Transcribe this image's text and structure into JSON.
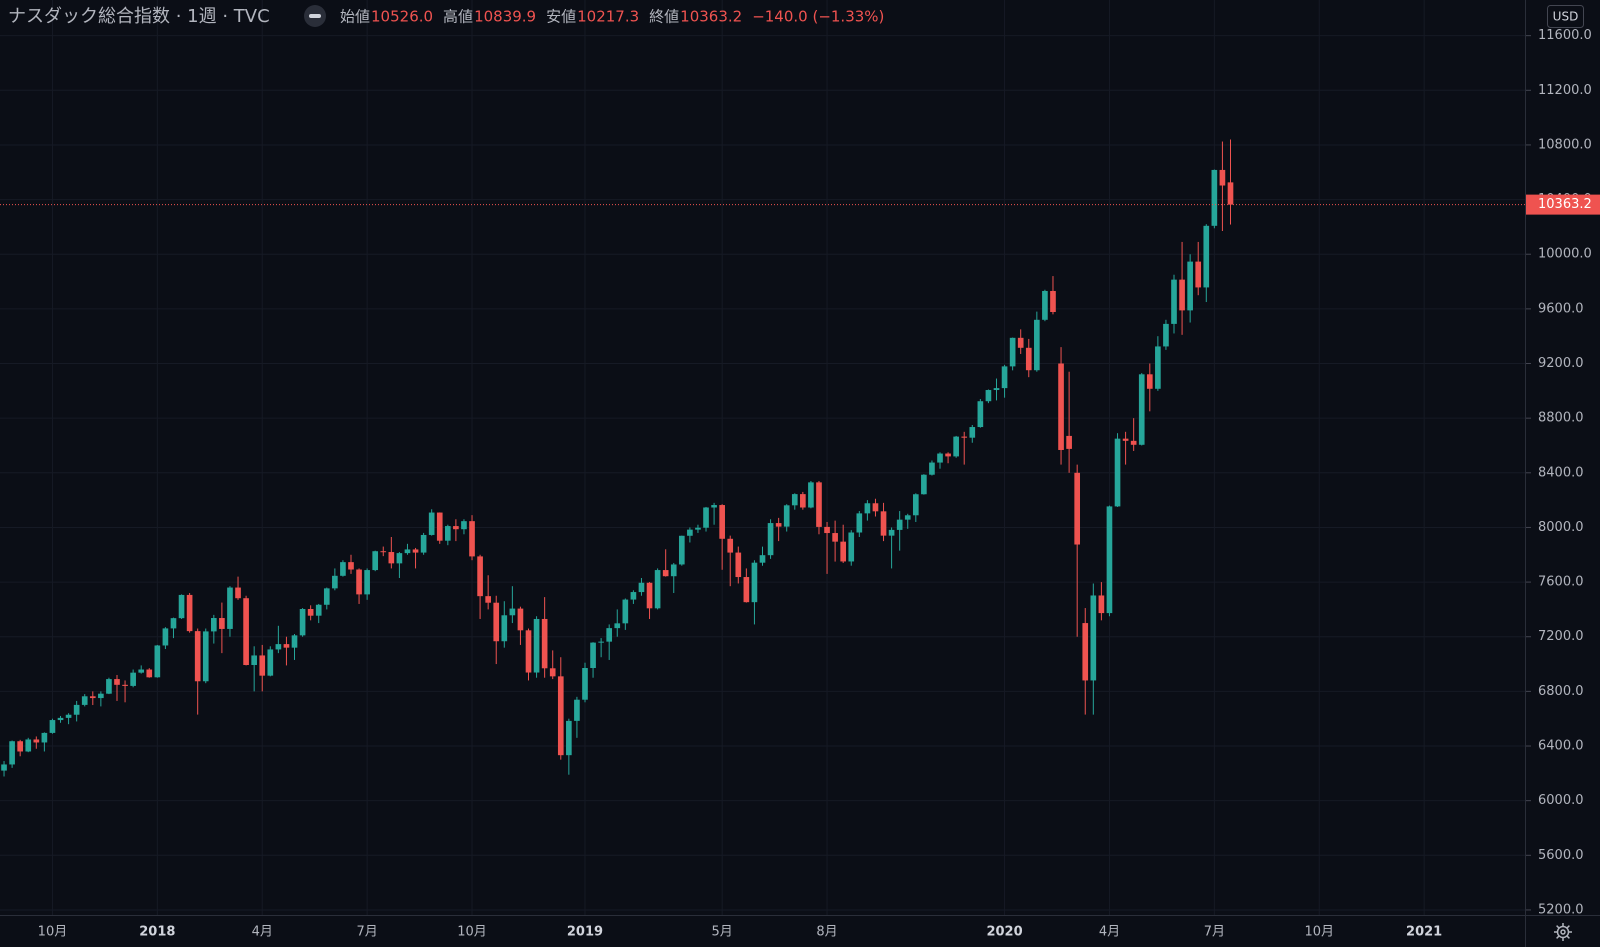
{
  "chart_data": {
    "type": "candlestick",
    "title": "ナスダック総合指数 · 1週 · TVC",
    "legend": [
      {
        "label": "始値",
        "value": "10526.0"
      },
      {
        "label": "高値",
        "value": "10839.9"
      },
      {
        "label": "安値",
        "value": "10217.3"
      },
      {
        "label": "終値",
        "value": "10363.2"
      }
    ],
    "change": "−140.0 (−1.33%)",
    "currency": "USD",
    "up_color": "#26a69a",
    "down_color": "#ef5350",
    "grid": true,
    "last_price_line": true,
    "ylim": [
      5163,
      11861
    ],
    "yticks": [
      {
        "value": 11600,
        "label": "11600.0"
      },
      {
        "value": 11200,
        "label": "11200.0"
      },
      {
        "value": 10800,
        "label": "10800.0"
      },
      {
        "value": 10400,
        "label": "10400.0"
      },
      {
        "value": 10000,
        "label": "10000.0"
      },
      {
        "value": 9600,
        "label": "9600.0"
      },
      {
        "value": 9200,
        "label": "9200.0"
      },
      {
        "value": 8800,
        "label": "8800.0"
      },
      {
        "value": 8400,
        "label": "8400.0"
      },
      {
        "value": 8000,
        "label": "8000.0"
      },
      {
        "value": 7600,
        "label": "7600.0"
      },
      {
        "value": 7200,
        "label": "7200.0"
      },
      {
        "value": 6800,
        "label": "6800.0"
      },
      {
        "value": 6400,
        "label": "6400.0"
      },
      {
        "value": 6000,
        "label": "6000.0"
      },
      {
        "value": 5600,
        "label": "5600.0"
      },
      {
        "value": 5200,
        "label": "5200.0"
      }
    ],
    "categories": [
      null,
      null,
      null,
      null,
      null,
      null,
      "10月",
      null,
      null,
      null,
      null,
      null,
      null,
      null,
      null,
      null,
      null,
      null,
      null,
      "2018",
      null,
      null,
      null,
      null,
      null,
      null,
      null,
      null,
      null,
      null,
      null,
      null,
      "4月",
      null,
      null,
      null,
      null,
      null,
      null,
      null,
      null,
      null,
      null,
      null,
      null,
      "7月",
      null,
      null,
      null,
      null,
      null,
      null,
      null,
      null,
      null,
      null,
      null,
      null,
      "10月",
      null,
      null,
      null,
      null,
      null,
      null,
      null,
      null,
      null,
      null,
      null,
      null,
      null,
      "2019",
      null,
      null,
      null,
      null,
      null,
      null,
      null,
      null,
      null,
      null,
      null,
      null,
      null,
      null,
      null,
      null,
      "5月",
      null,
      null,
      null,
      null,
      null,
      null,
      null,
      null,
      null,
      null,
      null,
      null,
      "8月",
      null,
      null,
      null,
      null,
      null,
      null,
      null,
      null,
      null,
      null,
      null,
      null,
      null,
      null,
      null,
      null,
      null,
      null,
      null,
      null,
      null,
      "2020",
      null,
      null,
      null,
      null,
      null,
      null,
      null,
      null,
      null,
      null,
      null,
      null,
      "4月",
      null,
      null,
      null,
      null,
      null,
      null,
      null,
      null,
      null,
      null,
      null,
      null,
      "7月",
      null,
      null,
      null,
      null,
      null,
      null,
      null,
      null,
      null,
      null,
      null,
      null,
      "10月",
      null,
      null,
      null,
      null,
      null,
      null,
      null,
      null,
      null,
      null,
      null,
      null,
      "2021",
      null,
      null,
      null,
      null,
      null,
      null,
      null,
      null,
      null,
      null,
      null,
      null
    ],
    "open": [
      6220,
      6265,
      6435,
      6360,
      6448,
      6426,
      6496,
      6590,
      6606,
      6629,
      6701,
      6764,
      6751,
      6783,
      6890,
      6848,
      6840,
      6937,
      6960,
      6903,
      7136,
      7261,
      7336,
      7506,
      7241,
      6874,
      7239,
      7337,
      7257,
      7560,
      7482,
      6993,
      7063,
      6915,
      7107,
      7146,
      7120,
      7210,
      7403,
      7354,
      7434,
      7554,
      7646,
      7746,
      7692,
      7510,
      7688,
      7826,
      7820,
      7737,
      7812,
      7839,
      7816,
      7945,
      8109,
      7903,
      8010,
      7987,
      8046,
      7788,
      7497,
      7449,
      7167,
      7357,
      7406,
      7247,
      6938,
      7330,
      6969,
      6910,
      6333,
      6584,
      6739,
      6971,
      7157,
      7164,
      7263,
      7298,
      7472,
      7527,
      7595,
      7408,
      7688,
      7643,
      7729,
      7939,
      7984,
      7998,
      8146,
      8164,
      7917,
      7816,
      7637,
      7453,
      7742,
      7797,
      8032,
      8006,
      8162,
      8244,
      8146,
      8330,
      8004,
      7959,
      7896,
      7751,
      7963,
      8103,
      8177,
      8118,
      7940,
      7982,
      8057,
      8089,
      8243,
      8386,
      8475,
      8541,
      8520,
      8665,
      8657,
      8735,
      8924,
      9006,
      9020,
      9179,
      9388,
      9315,
      9151,
      9520,
      9731,
      9200,
      8670,
      8400,
      7300,
      6880,
      7502,
      7373,
      8154,
      8650,
      8634,
      8605,
      9121,
      9015,
      9325,
      9490,
      9814,
      9589,
      9946,
      9757,
      10208,
      10617,
      10526,
      null,
      null,
      null,
      null,
      null,
      null,
      null,
      null,
      null,
      null,
      null,
      null,
      null,
      null,
      null,
      null,
      null,
      null,
      null,
      null,
      null,
      null,
      null,
      null,
      null,
      null,
      null,
      null,
      null,
      null,
      null,
      null,
      null,
      null,
      null,
      null
    ],
    "high": [
      6290,
      6440,
      6445,
      6460,
      6470,
      6500,
      6600,
      6620,
      6640,
      6730,
      6780,
      6800,
      6800,
      6900,
      6920,
      6880,
      6960,
      6990,
      6970,
      7140,
      7270,
      7340,
      7510,
      7520,
      7260,
      7260,
      7360,
      7450,
      7570,
      7640,
      7500,
      7130,
      7140,
      7130,
      7280,
      7200,
      7220,
      7410,
      7430,
      7440,
      7560,
      7700,
      7760,
      7800,
      7700,
      7700,
      7830,
      7860,
      7930,
      7820,
      7880,
      7850,
      7960,
      8133,
      8110,
      8020,
      8060,
      8060,
      8090,
      7800,
      7650,
      7500,
      7460,
      7570,
      7420,
      7260,
      7350,
      7490,
      7100,
      7050,
      6600,
      6760,
      7010,
      7160,
      7190,
      7290,
      7400,
      7480,
      7540,
      7630,
      7600,
      7700,
      7840,
      7740,
      7940,
      8000,
      8020,
      8150,
      8180,
      8170,
      7940,
      7860,
      7700,
      7760,
      7860,
      8060,
      8070,
      8170,
      8250,
      8260,
      8340,
      8340,
      8040,
      8050,
      8020,
      7980,
      8120,
      8200,
      8210,
      8180,
      8000,
      8120,
      8100,
      8250,
      8390,
      8490,
      8550,
      8550,
      8670,
      8700,
      8750,
      8940,
      9010,
      9090,
      9190,
      9390,
      9450,
      9380,
      9580,
      9740,
      9840,
      9320,
      9140,
      8460,
      7410,
      7590,
      7600,
      8160,
      8690,
      8700,
      8800,
      9130,
      9200,
      9400,
      9520,
      9850,
      10090,
      10000,
      10090,
      10220,
      10620,
      10825,
      10839.9,
      null,
      null,
      null,
      null,
      null,
      null,
      null,
      null,
      null,
      null,
      null,
      null,
      null,
      null,
      null,
      null,
      null,
      null,
      null,
      null,
      null,
      null,
      null,
      null,
      null,
      null,
      null,
      null,
      null,
      null,
      null,
      null,
      null,
      null,
      null,
      null
    ],
    "low": [
      6177,
      6240,
      6325,
      6355,
      6380,
      6360,
      6490,
      6570,
      6560,
      6580,
      6690,
      6700,
      6690,
      6780,
      6730,
      6720,
      6830,
      6930,
      6900,
      6900,
      7110,
      7190,
      7330,
      7230,
      6630,
      6860,
      7150,
      7080,
      7200,
      7470,
      6990,
      6800,
      6800,
      6910,
      7080,
      6990,
      7030,
      7200,
      7320,
      7300,
      7400,
      7540,
      7640,
      7660,
      7440,
      7470,
      7680,
      7790,
      7700,
      7630,
      7800,
      7700,
      7800,
      7940,
      7880,
      7870,
      7900,
      7950,
      7760,
      7330,
      7400,
      7000,
      7120,
      7300,
      7140,
      6880,
      6900,
      6900,
      6890,
      6300,
      6190,
      6460,
      6720,
      6900,
      7050,
      7030,
      7200,
      7250,
      7440,
      7500,
      7330,
      7400,
      7640,
      7520,
      7720,
      7890,
      7960,
      7970,
      8020,
      7690,
      7570,
      7590,
      7450,
      7290,
      7720,
      7770,
      7900,
      7970,
      8130,
      8130,
      8140,
      7950,
      7660,
      7750,
      7740,
      7720,
      7930,
      8050,
      8080,
      7900,
      7700,
      7830,
      7990,
      8040,
      8240,
      8380,
      8430,
      8470,
      8510,
      8460,
      8620,
      8730,
      8910,
      8930,
      8950,
      9150,
      9270,
      9100,
      9140,
      9510,
      9560,
      8460,
      8400,
      7200,
      6630,
      6630,
      7320,
      7350,
      8150,
      8460,
      8560,
      8600,
      8850,
      9000,
      9300,
      9420,
      9410,
      9500,
      9700,
      9650,
      10190,
      10170,
      10217.3,
      null,
      null,
      null,
      null,
      null,
      null,
      null,
      null,
      null,
      null,
      null,
      null,
      null,
      null,
      null,
      null,
      null,
      null,
      null,
      null,
      null,
      null,
      null,
      null,
      null,
      null,
      null,
      null,
      null,
      null,
      null,
      null,
      null,
      null,
      null,
      null
    ],
    "close": [
      6265,
      6435,
      6360,
      6448,
      6426,
      6496,
      6590,
      6606,
      6629,
      6701,
      6764,
      6751,
      6783,
      6890,
      6848,
      6840,
      6937,
      6960,
      6903,
      7136,
      7261,
      7336,
      7506,
      7241,
      6874,
      7239,
      7337,
      7257,
      7560,
      7482,
      6993,
      7063,
      6915,
      7107,
      7146,
      7120,
      7210,
      7403,
      7354,
      7434,
      7554,
      7646,
      7746,
      7692,
      7510,
      7688,
      7826,
      7820,
      7737,
      7812,
      7839,
      7816,
      7945,
      8109,
      7903,
      8010,
      7987,
      8046,
      7788,
      7497,
      7449,
      7167,
      7357,
      7406,
      7247,
      6938,
      7330,
      6969,
      6910,
      6333,
      6584,
      6739,
      6971,
      7157,
      7164,
      7263,
      7298,
      7472,
      7527,
      7595,
      7408,
      7688,
      7643,
      7729,
      7939,
      7984,
      7998,
      8146,
      8164,
      7917,
      7816,
      7637,
      7453,
      7742,
      7797,
      8032,
      8006,
      8162,
      8244,
      8146,
      8330,
      8004,
      7959,
      7896,
      7751,
      7963,
      8103,
      8177,
      8118,
      7940,
      7982,
      8057,
      8089,
      8243,
      8386,
      8475,
      8541,
      8520,
      8665,
      8657,
      8735,
      8924,
      9006,
      9020,
      9179,
      9388,
      9315,
      9151,
      9520,
      9731,
      9577,
      8567,
      8575,
      7875,
      6880,
      7502,
      7373,
      8154,
      8650,
      8634,
      8605,
      9121,
      9015,
      9325,
      9490,
      9814,
      9589,
      9946,
      9757,
      10208,
      10617,
      10503,
      10363.2,
      null,
      null,
      null,
      null,
      null,
      null,
      null,
      null,
      null,
      null,
      null,
      null,
      null,
      null,
      null,
      null,
      null,
      null,
      null,
      null,
      null,
      null,
      null,
      null,
      null,
      null,
      null,
      null,
      null,
      null,
      null,
      null,
      null,
      null,
      null,
      null
    ]
  }
}
